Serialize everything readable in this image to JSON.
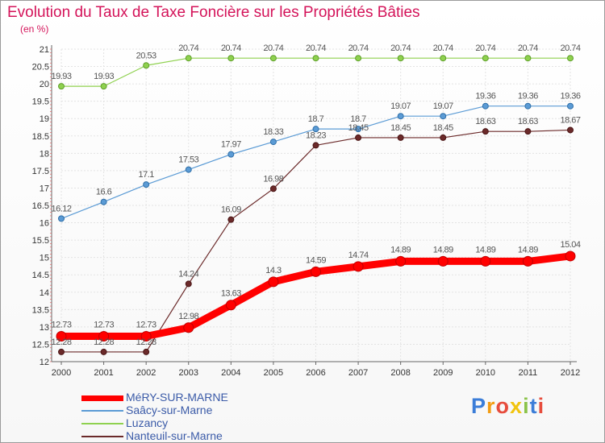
{
  "chart_data": {
    "type": "line",
    "title": "Evolution du Taux de Taxe Foncière sur les Propriétés Bâties",
    "unit_label": "(en %)",
    "x": [
      2000,
      2001,
      2002,
      2003,
      2004,
      2005,
      2006,
      2007,
      2008,
      2009,
      2010,
      2011,
      2012
    ],
    "ylim": [
      12,
      21
    ],
    "yticks": [
      12,
      12.5,
      13,
      13.5,
      14,
      14.5,
      15,
      15.5,
      16,
      16.5,
      17,
      17.5,
      18,
      18.5,
      19,
      19.5,
      20,
      20.5,
      21
    ],
    "grid": true,
    "legend_position": "bottom-left",
    "series": [
      {
        "name": "MéRY-SUR-MARNE",
        "color": "#ff0000",
        "values": [
          12.73,
          12.73,
          12.73,
          12.98,
          13.63,
          14.3,
          14.59,
          14.74,
          14.89,
          14.89,
          14.89,
          14.89,
          15.04
        ]
      },
      {
        "name": "Saâcy-sur-Marne",
        "color": "#5b9bd5",
        "values": [
          16.12,
          16.6,
          17.1,
          17.53,
          17.97,
          18.33,
          18.7,
          18.7,
          19.07,
          19.07,
          19.36,
          19.36,
          19.36
        ]
      },
      {
        "name": "Luzancy",
        "color": "#8fd14f",
        "values": [
          19.93,
          19.93,
          20.53,
          20.74,
          20.74,
          20.74,
          20.74,
          20.74,
          20.74,
          20.74,
          20.74,
          20.74,
          20.74
        ]
      },
      {
        "name": "Nanteuil-sur-Marne",
        "color": "#6b2a2a",
        "values": [
          12.28,
          12.28,
          12.28,
          14.24,
          16.09,
          16.98,
          18.23,
          18.45,
          18.45,
          18.45,
          18.63,
          18.63,
          18.67
        ]
      }
    ]
  },
  "logo": {
    "text": "Proxiti",
    "colors": [
      "#3b7dd8",
      "#f39c12",
      "#e74c3c",
      "#f1c40f",
      "#8bc34a",
      "#3b7dd8",
      "#e74c3c"
    ]
  }
}
